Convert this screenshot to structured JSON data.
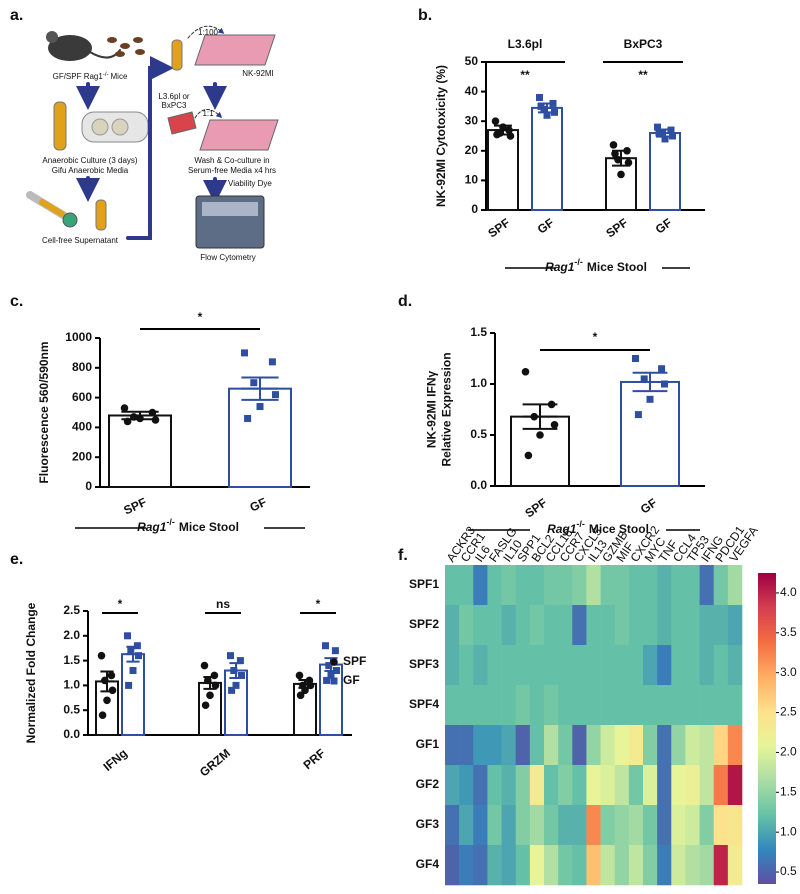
{
  "panel_labels": [
    "a.",
    "b.",
    "c.",
    "d.",
    "e.",
    "f."
  ],
  "schematic": {
    "mice": {
      "text": "GF/SPF Rag1",
      "sup": "-/-",
      "tail": "Mice"
    },
    "culture": [
      "Anaerobic Culture (3 days)",
      "Gifu Anaerobic Media"
    ],
    "supernatant": "Cell-free Supernatant",
    "dilution1": "1:100",
    "cells": "NK-92MI",
    "tumor": [
      "L3.6pl or",
      "BxPC3"
    ],
    "dilution2": "1:1",
    "coculture": [
      "Wash & Co-culture in",
      "Serum-free Media x4 hrs"
    ],
    "dye": "Viability Dye",
    "readout": "Flow Cytometry"
  },
  "chart_data": [
    {
      "type": "bar",
      "ylabel": [
        "NK-92MI Cytotoxicity (%)"
      ],
      "categories": [
        "L3.6pl",
        "BxPC3"
      ],
      "series": [
        {
          "name": "SPF",
          "color": "#111111",
          "marker": "circle",
          "values": [
            27,
            17.5
          ],
          "errors": [
            1.5,
            2.5
          ],
          "points": [
            [
              30,
              27,
              26,
              25,
              28,
              25.5
            ],
            [
              22,
              20,
              17,
              16,
              12,
              19
            ]
          ]
        },
        {
          "name": "GF",
          "color": "#2e4ea1",
          "marker": "square",
          "values": [
            34.5,
            26
          ],
          "errors": [
            1.5,
            1.2
          ],
          "points": [
            [
              38,
              36,
              34,
              33,
              32,
              35
            ],
            [
              28,
              27,
              26,
              25,
              24,
              26
            ]
          ]
        }
      ],
      "annotations": [
        "**",
        "**"
      ],
      "xlabel": {
        "gene": "Rag1",
        "sup": "-/-",
        "text": "Mice Stool"
      },
      "ylim": [
        0,
        50
      ],
      "yticks": [
        0,
        10,
        20,
        30,
        40,
        50
      ]
    },
    {
      "type": "bar",
      "ylabel": [
        "Fluorescence 560/590nm"
      ],
      "categories": [
        "SPF",
        "GF"
      ],
      "colors": [
        "#111111",
        "#2e4ea1"
      ],
      "markers": [
        "circle",
        "square"
      ],
      "values": [
        480,
        660
      ],
      "errors": [
        25,
        75
      ],
      "points": [
        [
          530,
          500,
          470,
          450,
          460,
          440
        ],
        [
          900,
          840,
          700,
          620,
          540,
          460
        ]
      ],
      "annotations": [
        "*"
      ],
      "xlabel": {
        "gene": "Rag1",
        "sup": "-/-",
        "text": "Mice Stool"
      },
      "ylim": [
        0,
        1000
      ],
      "yticks": [
        0,
        200,
        400,
        600,
        800,
        1000
      ]
    },
    {
      "type": "bar",
      "ylabel": [
        "NK-92MI IFNγ",
        "Relative Expression"
      ],
      "categories": [
        "SPF",
        "GF"
      ],
      "colors": [
        "#111111",
        "#2e4ea1"
      ],
      "markers": [
        "circle",
        "square"
      ],
      "values": [
        0.68,
        1.02
      ],
      "errors": [
        0.12,
        0.09
      ],
      "points": [
        [
          1.12,
          0.8,
          0.68,
          0.6,
          0.5,
          0.3
        ],
        [
          1.25,
          1.15,
          1.05,
          1.0,
          0.85,
          0.7
        ]
      ],
      "annotations": [
        "*"
      ],
      "xlabel": {
        "gene": "Rag1",
        "sup": "-/-",
        "text": "Mice Stool"
      },
      "ylim": [
        0,
        1.5
      ],
      "yticks": [
        {
          "value": 0,
          "label": "0.0"
        },
        0.5,
        {
          "value": 1,
          "label": "1.0"
        },
        1.5
      ]
    },
    {
      "type": "bar",
      "ylabel": [
        "Normalized Fold Change"
      ],
      "categories": [
        "IFNg",
        "GRZM",
        "PRF"
      ],
      "series": [
        {
          "name": "SPF",
          "color": "#111111",
          "marker": "circle",
          "values": [
            1.08,
            1.05,
            1.03
          ],
          "errors": [
            0.2,
            0.12,
            0.08
          ],
          "points": [
            [
              1.6,
              1.2,
              1.1,
              0.9,
              0.7,
              0.4
            ],
            [
              1.4,
              1.2,
              1.1,
              1.0,
              0.8,
              0.6
            ],
            [
              1.2,
              1.1,
              1.0,
              1.0,
              0.9,
              0.8
            ]
          ]
        },
        {
          "name": "GF",
          "color": "#2e4ea1",
          "marker": "square",
          "values": [
            1.63,
            1.3,
            1.42
          ],
          "errors": [
            0.15,
            0.15,
            0.13
          ],
          "points": [
            [
              2.0,
              1.8,
              1.7,
              1.6,
              1.3,
              1.0
            ],
            [
              1.6,
              1.5,
              1.3,
              1.2,
              1.0,
              0.9
            ],
            [
              1.8,
              1.7,
              1.4,
              1.3,
              1.2,
              1.1
            ]
          ]
        }
      ],
      "annotations": [
        "*",
        "ns",
        "*"
      ],
      "legend": "right",
      "ylim": [
        0,
        2.5
      ],
      "yticks": [
        {
          "value": 0,
          "label": "0.0"
        },
        0.5,
        {
          "value": 1,
          "label": "1.0"
        },
        1.5,
        {
          "value": 2,
          "label": "2.0"
        },
        2.5
      ]
    },
    {
      "type": "heatmap",
      "rows": [
        "SPF1",
        "SPF2",
        "SPF3",
        "SPF4",
        "GF1",
        "GF2",
        "GF3",
        "GF4"
      ],
      "columns": [
        "ACKR3",
        "CCR1",
        "IL6",
        "FASLG",
        "IL10",
        "SPP1",
        "BCL2",
        "CCL18",
        "CCR7",
        "CXCL5",
        "IL13",
        "GZMB",
        "MIF",
        "CXCR2",
        "MYC",
        "TNF",
        "CCL4",
        "TP53",
        "IFNG",
        "PDCD1",
        "VEGFA"
      ],
      "values": [
        [
          1.2,
          1.2,
          0.7,
          1.2,
          1.3,
          1.2,
          1.2,
          1.3,
          1.3,
          1.4,
          1.7,
          1.3,
          1.3,
          1.2,
          1.2,
          1.1,
          1.2,
          1.2,
          0.6,
          1.3,
          1.6
        ],
        [
          1.1,
          1.3,
          1.2,
          1.2,
          1.1,
          1.2,
          1.3,
          1.2,
          1.2,
          0.6,
          1.2,
          1.2,
          1.3,
          1.2,
          1.2,
          1.1,
          1.2,
          1.2,
          1.1,
          1.1,
          1.0
        ],
        [
          1.1,
          1.2,
          1.1,
          1.2,
          1.2,
          1.2,
          1.2,
          1.2,
          1.2,
          1.2,
          1.2,
          1.2,
          1.2,
          1.2,
          1.0,
          0.7,
          1.2,
          1.2,
          1.1,
          1.2,
          1.1
        ],
        [
          1.2,
          1.2,
          1.2,
          1.2,
          1.2,
          1.3,
          1.2,
          1.3,
          1.2,
          1.2,
          1.2,
          1.2,
          1.2,
          1.2,
          1.2,
          1.2,
          1.2,
          1.2,
          1.2,
          1.2,
          1.2
        ],
        [
          0.6,
          0.6,
          0.9,
          0.9,
          1.0,
          0.5,
          1.2,
          1.7,
          1.3,
          0.5,
          1.5,
          1.9,
          2.1,
          2.3,
          1.4,
          0.6,
          1.5,
          1.9,
          1.8,
          2.6,
          3.2
        ],
        [
          1.0,
          0.9,
          0.6,
          1.2,
          1.1,
          1.4,
          2.3,
          1.2,
          1.4,
          1.2,
          2.1,
          2.0,
          1.8,
          1.3,
          2.0,
          0.6,
          2.1,
          2.2,
          1.8,
          3.3,
          4.1
        ],
        [
          0.6,
          1.0,
          0.7,
          1.3,
          1.0,
          1.4,
          1.6,
          1.3,
          1.1,
          1.1,
          3.2,
          1.4,
          1.5,
          1.6,
          1.3,
          0.6,
          2.0,
          1.9,
          1.4,
          2.5,
          2.4
        ],
        [
          0.5,
          0.7,
          0.6,
          1.1,
          1.0,
          1.2,
          2.1,
          1.7,
          1.3,
          1.2,
          2.8,
          1.8,
          1.5,
          1.8,
          1.4,
          0.7,
          1.9,
          1.7,
          1.6,
          4.0,
          2.3
        ]
      ],
      "colormap": [
        "#5e4fa2",
        "#3288bd",
        "#66c2a5",
        "#abdda4",
        "#e6f598",
        "#fee08b",
        "#fdae61",
        "#f46d43",
        "#d53e4f",
        "#9e0142"
      ],
      "clim": [
        0.35,
        4.25
      ],
      "cticks": [
        0.5,
        {
          "value": 1,
          "label": "1.0"
        },
        1.5,
        {
          "value": 2,
          "label": "2.0"
        },
        2.5,
        {
          "value": 3,
          "label": "3.0"
        },
        3.5,
        {
          "value": 4,
          "label": "4.0"
        }
      ]
    }
  ]
}
